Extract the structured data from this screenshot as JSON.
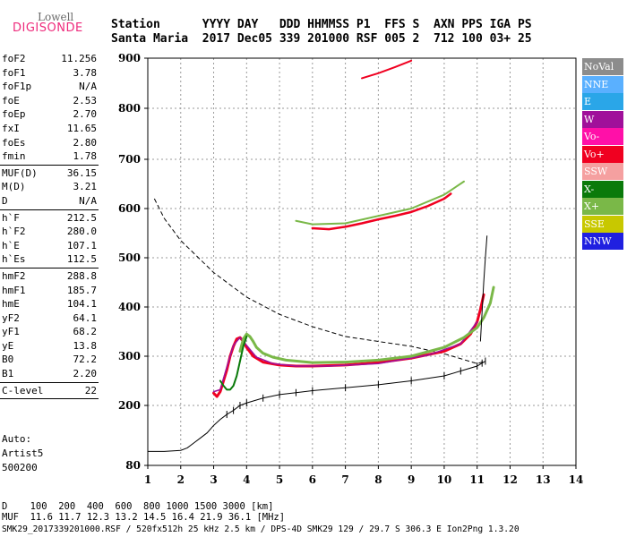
{
  "logo": {
    "line1": "Lowell",
    "line2": "DIGISONDE"
  },
  "header": {
    "line1": "Station      YYYY DAY   DDD HHMMSS P1  FFS S  AXN PPS IGA PS",
    "line2": "Santa Maria  2017 Dec05 339 201000 RSF 005 2  712 100 03+ 25"
  },
  "params_a": [
    {
      "label": "foF2",
      "value": "11.256"
    },
    {
      "label": "foF1",
      "value": "3.78"
    },
    {
      "label": "foF1p",
      "value": "N/A"
    },
    {
      "label": "foE",
      "value": "2.53"
    },
    {
      "label": "foEp",
      "value": "2.70"
    },
    {
      "label": "fxI",
      "value": "11.65"
    },
    {
      "label": "foEs",
      "value": "2.80"
    },
    {
      "label": "fmin",
      "value": "1.78"
    }
  ],
  "params_b": [
    {
      "label": "MUF(D)",
      "value": "36.15"
    },
    {
      "label": "M(D)",
      "value": "3.21"
    },
    {
      "label": "D",
      "value": "N/A"
    }
  ],
  "params_c": [
    {
      "label": "h`F",
      "value": "212.5"
    },
    {
      "label": "h`F2",
      "value": "280.0"
    },
    {
      "label": "h`E",
      "value": "107.1"
    },
    {
      "label": "h`Es",
      "value": "112.5"
    }
  ],
  "params_d": [
    {
      "label": "hmF2",
      "value": "288.8"
    },
    {
      "label": "hmF1",
      "value": "185.7"
    },
    {
      "label": "hmE",
      "value": "104.1"
    },
    {
      "label": "yF2",
      "value": "64.1"
    },
    {
      "label": "yF1",
      "value": "68.2"
    },
    {
      "label": "yE",
      "value": "13.8"
    },
    {
      "label": "B0",
      "value": "72.2"
    },
    {
      "label": "B1",
      "value": "2.20"
    }
  ],
  "params_e": [
    {
      "label": "C-level",
      "value": "22"
    }
  ],
  "auto": {
    "line1": "Auto:",
    "line2": "Artist5",
    "line3": "500200"
  },
  "legend": [
    {
      "label": "NoVal",
      "color": "#8c8c8c"
    },
    {
      "label": "NNE",
      "color": "#5ab0ff"
    },
    {
      "label": "E",
      "color": "#2aa6e8"
    },
    {
      "label": "W",
      "color": "#a0109a"
    },
    {
      "label": "Vo-",
      "color": "#ff10a8"
    },
    {
      "label": "Vo+",
      "color": "#f00020"
    },
    {
      "label": "SSW",
      "color": "#f5a0a0"
    },
    {
      "label": "X-",
      "color": "#0a7a0a"
    },
    {
      "label": "X+",
      "color": "#7ab848"
    },
    {
      "label": "SSE",
      "color": "#c8c800"
    },
    {
      "label": "NNW",
      "color": "#2020e0"
    }
  ],
  "footer": {
    "line1": "D    100  200  400  600  800 1000 1500 3000 [km]",
    "line2": "MUF  11.6 11.7 12.3 13.2 14.5 16.4 21.9 36.1 [MHz]",
    "line3": "SMK29_2017339201000.RSF / 520fx512h 25 kHz 2.5 km / DPS-4D SMK29 129 / 29.7 S 306.3 E Ion2Png 1.3.20"
  },
  "chart_data": {
    "type": "scatter",
    "xlim": [
      1,
      14
    ],
    "ylim": [
      80,
      900
    ],
    "xticks": [
      1,
      2,
      3,
      4,
      5,
      6,
      7,
      8,
      9,
      10,
      11,
      12,
      13,
      14
    ],
    "yticks": [
      80,
      200,
      300,
      400,
      500,
      600,
      700,
      800,
      900
    ],
    "grid": true,
    "series": [
      {
        "color": "#f00020",
        "width": 3,
        "x": [
          3.0,
          3.1,
          3.2,
          3.3,
          3.4,
          3.5,
          3.6,
          3.7,
          3.8,
          3.9,
          4.0,
          4.2,
          4.5,
          5.0,
          5.5,
          6.0,
          7.0,
          8.0,
          9.0,
          10.0,
          10.5,
          10.8,
          11.0,
          11.1,
          11.2
        ],
        "y": [
          225,
          218,
          228,
          250,
          272,
          300,
          320,
          335,
          338,
          330,
          318,
          300,
          288,
          282,
          280,
          280,
          282,
          287,
          296,
          310,
          325,
          345,
          370,
          395,
          425
        ]
      },
      {
        "color": "#a0109a",
        "width": 1.5,
        "x": [
          3.0,
          3.2,
          3.4,
          3.6,
          3.8,
          4.0,
          4.3,
          4.8,
          5.5,
          6.5,
          8.0,
          9.5,
          10.5,
          11.0
        ],
        "y": [
          228,
          232,
          278,
          322,
          338,
          322,
          298,
          285,
          280,
          280,
          285,
          302,
          325,
          370
        ]
      },
      {
        "color": "#7ab848",
        "width": 3,
        "x": [
          3.8,
          3.9,
          4.0,
          4.1,
          4.2,
          4.3,
          4.5,
          4.8,
          5.2,
          6.0,
          7.0,
          8.0,
          9.0,
          10.0,
          10.6,
          11.0,
          11.2,
          11.4,
          11.5
        ],
        "y": [
          310,
          335,
          345,
          340,
          330,
          318,
          306,
          298,
          292,
          287,
          288,
          292,
          300,
          318,
          338,
          358,
          378,
          408,
          440
        ]
      },
      {
        "color": "#0a7a0a",
        "width": 2,
        "x": [
          3.2,
          3.3,
          3.4,
          3.5,
          3.6,
          3.7,
          3.8,
          3.9,
          4.0
        ],
        "y": [
          250,
          240,
          232,
          232,
          240,
          260,
          290,
          320,
          340
        ]
      },
      {
        "color": "#f00020",
        "width": 2.5,
        "x": [
          6.0,
          6.5,
          7.0,
          7.5,
          8.0,
          8.5,
          9.0,
          9.5,
          10.0,
          10.2
        ],
        "y": [
          560,
          558,
          563,
          570,
          578,
          585,
          593,
          605,
          620,
          630
        ]
      },
      {
        "color": "#7ab848",
        "width": 2,
        "x": [
          5.5,
          6.0,
          7.0,
          8.0,
          9.0,
          10.0,
          10.6
        ],
        "y": [
          575,
          568,
          570,
          585,
          600,
          628,
          655
        ]
      },
      {
        "color": "#f00020",
        "width": 2,
        "x": [
          7.5,
          8.0,
          8.5,
          9.0
        ],
        "y": [
          860,
          870,
          882,
          895
        ]
      }
    ],
    "profile": {
      "x": [
        1.0,
        1.5,
        2.0,
        2.2,
        2.4,
        2.6,
        2.8,
        3.0,
        3.2,
        3.4,
        3.6,
        3.8,
        4.0,
        4.5,
        5.0,
        5.5,
        6.0,
        7.0,
        8.0,
        9.0,
        10.0,
        10.5,
        11.0,
        11.15,
        11.25
      ],
      "y": [
        108,
        108,
        110,
        115,
        125,
        135,
        145,
        160,
        172,
        182,
        190,
        200,
        205,
        215,
        222,
        226,
        230,
        236,
        242,
        250,
        260,
        270,
        280,
        286,
        290
      ]
    },
    "trace": {
      "x": [
        11.1,
        11.15,
        11.2,
        11.25,
        11.3
      ],
      "y": [
        330,
        390,
        450,
        500,
        545
      ]
    },
    "density": {
      "x": [
        1.2,
        1.5,
        2.0,
        3.0,
        4.0,
        5.0,
        6.0,
        7.0,
        8.0,
        9.0,
        10.0,
        10.5,
        11.0,
        11.25
      ],
      "y": [
        620,
        580,
        535,
        470,
        420,
        385,
        360,
        340,
        330,
        320,
        305,
        295,
        285,
        290
      ]
    }
  }
}
